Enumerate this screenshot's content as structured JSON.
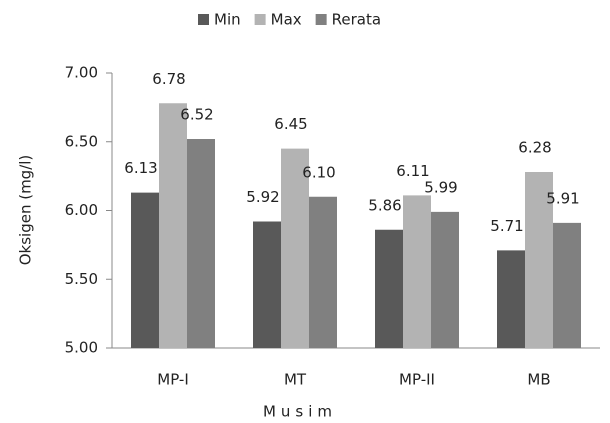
{
  "chart_data": {
    "type": "bar",
    "x_label": "Musim",
    "y_label": "Oksigen (mg/l)",
    "categories": [
      "MP-I",
      "MT",
      "MP-II",
      "MB"
    ],
    "series": [
      {
        "name": "Min",
        "color": "#595959",
        "values": [
          6.13,
          5.92,
          5.86,
          5.71
        ],
        "value_labels": [
          "6.13",
          "5.92",
          "5.86",
          "5.71"
        ]
      },
      {
        "name": "Max",
        "color": "#b3b3b3",
        "values": [
          6.78,
          6.45,
          6.11,
          6.28
        ],
        "value_labels": [
          "6.78",
          "6.45",
          "6.11",
          "6.28"
        ]
      },
      {
        "name": "Rerata",
        "color": "#808080",
        "values": [
          6.52,
          6.1,
          5.99,
          5.91
        ],
        "value_labels": [
          "6.52",
          "6.10",
          "5.99",
          "5.91"
        ]
      }
    ],
    "ylim": [
      5,
      7
    ],
    "yticks": [
      {
        "value": 5,
        "label": "5.00"
      },
      {
        "value": 5.5,
        "label": "5.50"
      },
      {
        "value": 6,
        "label": "6.00"
      },
      {
        "value": 6.5,
        "label": "6.50"
      },
      {
        "value": 7,
        "label": "7.00"
      }
    ],
    "grid": false,
    "legend": "top"
  }
}
